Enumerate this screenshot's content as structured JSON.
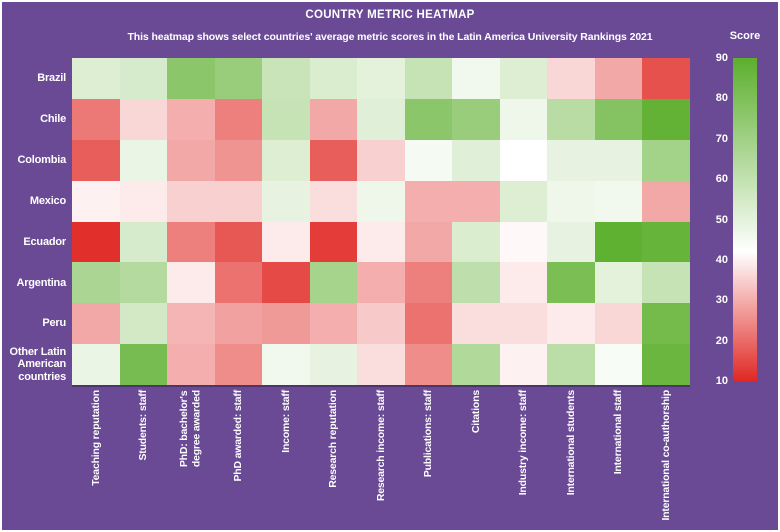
{
  "header": {
    "title": "COUNTRY METRIC HEATMAP",
    "subtitle": "This heatmap shows select countries' average metric scores in the Latin America University Rankings 2021"
  },
  "legend": {
    "label": "Score",
    "ticks": [
      90,
      80,
      70,
      60,
      50,
      40,
      30,
      20,
      10
    ],
    "min": 10,
    "max": 90,
    "white_point": 42,
    "color_low": "#e02824",
    "color_mid": "#ffffff",
    "color_high": "#5caf2d"
  },
  "colors": {
    "background": "#6a4a95",
    "text": "#ffffff",
    "axis_line": "#463069"
  },
  "chart_data": {
    "type": "heatmap",
    "title": "COUNTRY METRIC HEATMAP",
    "subtitle": "This heatmap shows select countries' average metric scores in the Latin America University Rankings 2021",
    "legend_title": "Score",
    "scale": {
      "min": 10,
      "max": 90,
      "white_point": 42,
      "low_color": "#e02824",
      "high_color": "#5caf2d",
      "legend_position": "right"
    },
    "rows": [
      "Brazil",
      "Chile",
      "Colombia",
      "Mexico",
      "Ecuador",
      "Argentina",
      "Peru",
      "Other Latin American countries"
    ],
    "rows_display": [
      "Brazil",
      "Chile",
      "Colombia",
      "Mexico",
      "Ecuador",
      "Argentina",
      "Peru",
      "Other Latin\nAmerican\ncountries"
    ],
    "columns": [
      "Teaching reputation",
      "Students: staff",
      "PhD: bachelor's degree awarded",
      "PhD awarded: staff",
      "Income: staff",
      "Research reputation",
      "Research income: staff",
      "Publications: staff",
      "Citations",
      "Industry income: staff",
      "International students",
      "International staff",
      "International co-authorship"
    ],
    "columns_display": [
      "Teaching reputation",
      "Students: staff",
      "PhD: bachelor's\ndegree awarded",
      "PhD awarded: staff",
      "Income: staff",
      "Research reputation",
      "Research income: staff",
      "Publications: staff",
      "Citations",
      "Industry income: staff",
      "International students",
      "International staff",
      "International co-authorship"
    ],
    "values": [
      [
        52,
        54,
        76,
        72,
        58,
        53,
        50,
        59,
        46,
        52,
        36,
        29,
        16
      ],
      [
        22,
        36,
        30,
        23,
        59,
        29,
        51,
        76,
        72,
        47,
        63,
        78,
        88
      ],
      [
        18,
        48,
        29,
        26,
        52,
        18,
        35,
        45,
        51,
        42,
        49,
        49,
        69
      ],
      [
        40,
        39,
        35,
        35,
        49,
        37,
        47,
        30,
        30,
        52,
        47,
        46,
        29
      ],
      [
        11,
        54,
        23,
        17,
        39,
        13,
        39,
        29,
        53,
        41,
        49,
        89,
        87
      ],
      [
        67,
        64,
        39,
        21,
        15,
        68,
        30,
        23,
        61,
        39,
        81,
        50,
        59
      ],
      [
        29,
        55,
        31,
        28,
        27,
        30,
        34,
        21,
        37,
        37,
        39,
        36,
        83
      ],
      [
        48,
        82,
        30,
        25,
        46,
        49,
        37,
        25,
        65,
        40,
        62,
        44,
        86
      ]
    ]
  }
}
